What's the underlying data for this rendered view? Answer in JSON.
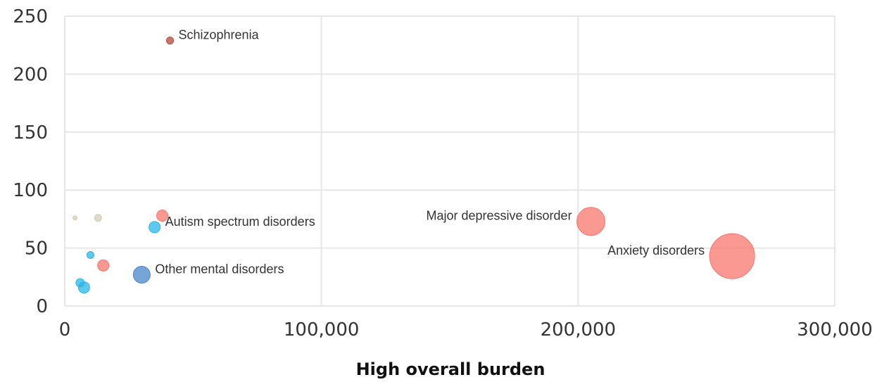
{
  "chart_data": {
    "type": "scatter",
    "subtype": "bubble",
    "title": "",
    "xlabel": "High overall burden",
    "ylabel": "",
    "xlim": [
      0,
      300000
    ],
    "ylim": [
      0,
      250
    ],
    "grid": true,
    "x_ticks": [
      {
        "value": 0,
        "label": "0"
      },
      {
        "value": 100000,
        "label": "100,000"
      },
      {
        "value": 200000,
        "label": "200,000"
      },
      {
        "value": 300000,
        "label": "300,000"
      }
    ],
    "y_ticks": [
      {
        "value": 0,
        "label": "0"
      },
      {
        "value": 50,
        "label": "50"
      },
      {
        "value": 100,
        "label": "100"
      },
      {
        "value": 150,
        "label": "150"
      },
      {
        "value": 200,
        "label": "200"
      },
      {
        "value": 250,
        "label": "250"
      }
    ],
    "points": [
      {
        "x": 41000,
        "y": 229,
        "size": 5,
        "color": "#b5473a",
        "label": "Schizophrenia",
        "label_side": "right"
      },
      {
        "x": 260000,
        "y": 43,
        "size": 32,
        "color": "#f8766d",
        "label": "Anxiety disorders",
        "label_side": "left"
      },
      {
        "x": 205000,
        "y": 73,
        "size": 20,
        "color": "#f8766d",
        "label": "Major depressive disorder",
        "label_side": "left"
      },
      {
        "x": 35000,
        "y": 68,
        "size": 8,
        "color": "#29b6e8",
        "label": "Autism spectrum disorders",
        "label_side": "right"
      },
      {
        "x": 30000,
        "y": 27,
        "size": 12,
        "color": "#4a86c8",
        "label": "Other mental disorders",
        "label_side": "right"
      },
      {
        "x": 38000,
        "y": 78,
        "size": 8,
        "color": "#f8766d",
        "label": "",
        "label_side": "right"
      },
      {
        "x": 15000,
        "y": 35,
        "size": 8,
        "color": "#f8766d",
        "label": "",
        "label_side": "right"
      },
      {
        "x": 13000,
        "y": 76,
        "size": 5,
        "color": "#d4cdb4",
        "label": "",
        "label_side": "right"
      },
      {
        "x": 4000,
        "y": 76,
        "size": 3,
        "color": "#d4cdb4",
        "label": "",
        "label_side": "right"
      },
      {
        "x": 10000,
        "y": 44,
        "size": 5,
        "color": "#29b6e8",
        "label": "",
        "label_side": "right"
      },
      {
        "x": 6000,
        "y": 20,
        "size": 6,
        "color": "#29b6e8",
        "label": "",
        "label_side": "right"
      },
      {
        "x": 7500,
        "y": 16,
        "size": 8,
        "color": "#29b6e8",
        "label": "",
        "label_side": "right"
      }
    ]
  }
}
